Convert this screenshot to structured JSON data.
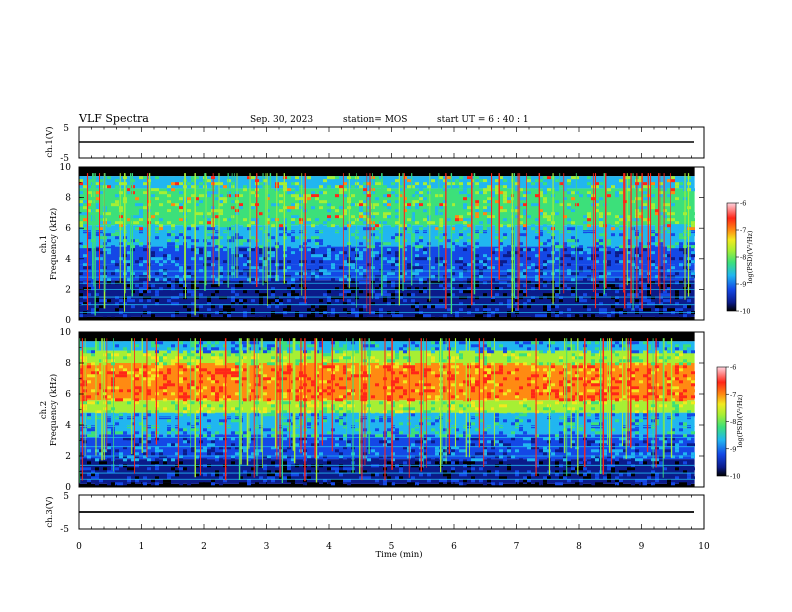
{
  "header": {
    "title": "VLF Spectra",
    "date": "Sep. 30, 2023",
    "station": "station= MOS",
    "start": "start  UT =   6  : 40 : 1"
  },
  "colors": {
    "scale": [
      "#000000",
      "#0b1b8a",
      "#1448e6",
      "#21b6f0",
      "#3ce07a",
      "#a6ef34",
      "#f2e91f",
      "#ff8a12",
      "#ff2618",
      "#ffd4e0"
    ],
    "background": "#ffffff",
    "axis": "#000000"
  },
  "chart_data": [
    {
      "type": "line",
      "name": "ch1-waveform",
      "ylabel": "ch.1(V)",
      "ylim": [
        -5,
        5
      ],
      "yticks": [
        "5",
        "-5"
      ],
      "x": [
        0,
        9.85
      ],
      "y": [
        0,
        0
      ]
    },
    {
      "type": "heatmap",
      "name": "ch1-spectrogram",
      "ylabel": "ch.1\nFrequency (kHz)",
      "ylim": [
        0,
        10
      ],
      "yticks": [
        "0",
        "2",
        "4",
        "6",
        "8",
        "10"
      ],
      "xlim": [
        0,
        10
      ],
      "data_extent_min": 9.85,
      "colorbar": {
        "label": "log(PSD)(V²/Hz)",
        "range": [
          -10,
          -6
        ],
        "ticks": [
          "-6",
          "-7",
          "-8",
          "-9",
          "-10"
        ]
      }
    },
    {
      "type": "heatmap",
      "name": "ch2-spectrogram",
      "ylabel": "ch.2\nFrequency (kHz)",
      "ylim": [
        0,
        10
      ],
      "yticks": [
        "0",
        "2",
        "4",
        "6",
        "8",
        "10"
      ],
      "xlim": [
        0,
        10
      ],
      "data_extent_min": 9.85,
      "colorbar": {
        "label": "log(PSD)(V²/Hz)",
        "range": [
          -10,
          -6
        ],
        "ticks": [
          "-6",
          "-7",
          "-8",
          "-9",
          "-10"
        ]
      }
    },
    {
      "type": "line",
      "name": "ch3-waveform",
      "ylabel": "ch.3(V)",
      "ylim": [
        -5,
        5
      ],
      "yticks": [
        "5",
        "-5"
      ],
      "x": [
        0,
        9.85
      ],
      "y": [
        0,
        0
      ]
    }
  ],
  "x_axis": {
    "label": "Time  (min)",
    "ticks": [
      "0",
      "1",
      "2",
      "3",
      "4",
      "5",
      "6",
      "7",
      "8",
      "9",
      "10"
    ],
    "range": [
      0,
      10
    ]
  },
  "labels": {
    "ch1_top": "ch.1",
    "ch1_bottom": "Frequency (kHz)",
    "ch2_top": "ch.2",
    "ch2_bottom": "Frequency (kHz)",
    "colorbar_label": "log(PSD)(V²/Hz)"
  }
}
